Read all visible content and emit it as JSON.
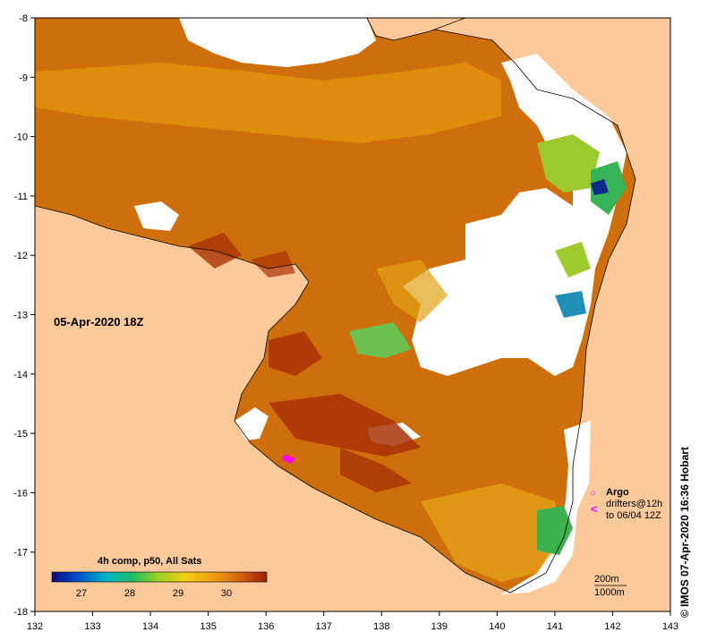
{
  "map": {
    "date_label": "05-Apr-2020 18Z",
    "x_ticks": [
      "132",
      "133",
      "134",
      "135",
      "136",
      "137",
      "138",
      "139",
      "140",
      "141",
      "142",
      "143"
    ],
    "y_ticks": [
      "-8",
      "-9",
      "-10",
      "-11",
      "-12",
      "-13",
      "-14",
      "-15",
      "-16",
      "-17",
      "-18"
    ],
    "legend": {
      "argo_label": "Argo",
      "drifters_line1": "drifters@12h",
      "drifters_line2": "to 06/04 12Z",
      "argo_symbol": "○",
      "drifter_symbol": "<"
    },
    "contours": {
      "depth_200": "200m",
      "depth_1000": "1000m"
    },
    "colorbar": {
      "title": "4h comp, p50, All Sats",
      "ticks": [
        "27",
        "28",
        "29",
        "30"
      ]
    },
    "credit": "©  IMOS 07-Apr-2020 16:36 Hobart",
    "colors": {
      "land": "#fbc99a",
      "no_data": "#ffffff",
      "sst_warm": "#c65a0a",
      "sst_hot": "#a32c05",
      "sst_mid": "#e0900e",
      "sst_cool": "#9ccd2f",
      "marker": "#ff00ff"
    }
  }
}
